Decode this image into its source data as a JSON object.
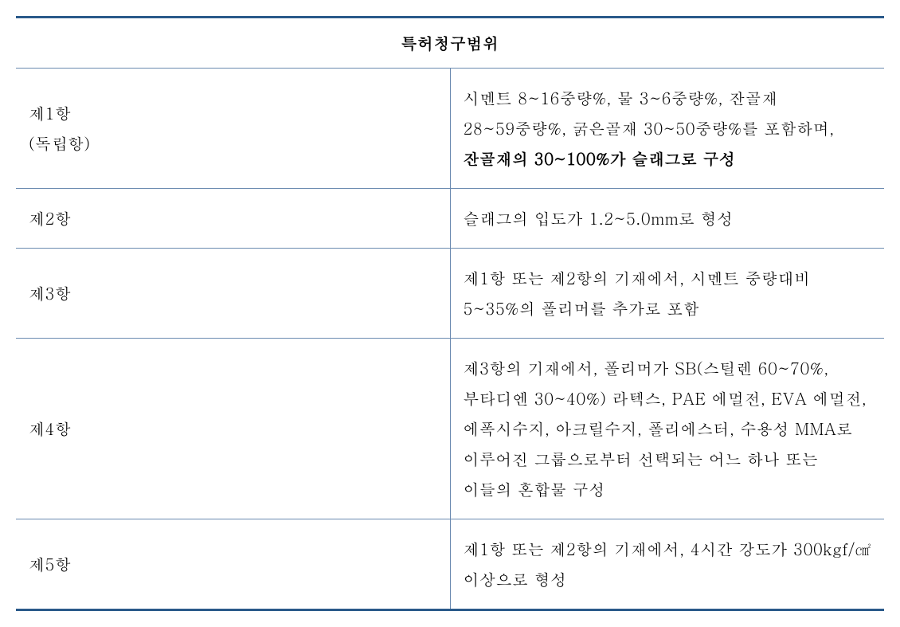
{
  "table": {
    "header": "특허청구범위",
    "rows": [
      {
        "label_line1": "제1항",
        "label_line2": "(독립항)",
        "content_plain": "시멘트 8~16중량%, 물 3~6중량%, 잔골재 28~59중량%, 굵은골재 30~50중량%를 포함하며, ",
        "content_bold": "잔골재의 30~100%가 슬래그로 구성"
      },
      {
        "label_line1": "제2항",
        "label_line2": "",
        "content_plain": "슬래그의 입도가 1.2~5.0mm로 형성",
        "content_bold": ""
      },
      {
        "label_line1": "제3항",
        "label_line2": "",
        "content_plain": "제1항 또는 제2항의 기재에서, 시멘트 중량대비 5~35%의 폴리머를 추가로 포함",
        "content_bold": ""
      },
      {
        "label_line1": "제4항",
        "label_line2": "",
        "content_plain": "제3항의 기재에서, 폴리머가 SB(스틸렌 60~70%, 부타디엔 30~40%) 라텍스, PAE 에멀전, EVA 에멀전, 에폭시수지, 아크릴수지, 폴리에스터, 수용성 MMA로 이루어진 그룹으로부터 선택되는 어느 하나 또는 이들의 혼합물 구성",
        "content_bold": ""
      },
      {
        "label_line1": "제5항",
        "label_line2": "",
        "content_plain": "제1항 또는 제2항의 기재에서, 4시간 강도가 300kgf/㎠ 이상으로 형성",
        "content_bold": ""
      }
    ]
  },
  "colors": {
    "border_main": "#2a5a8a",
    "border_inner": "#6a8ab0",
    "text": "#000000",
    "background": "#ffffff"
  },
  "font": {
    "family": "Batang",
    "size_pt": 15,
    "line_height": 1.9
  }
}
